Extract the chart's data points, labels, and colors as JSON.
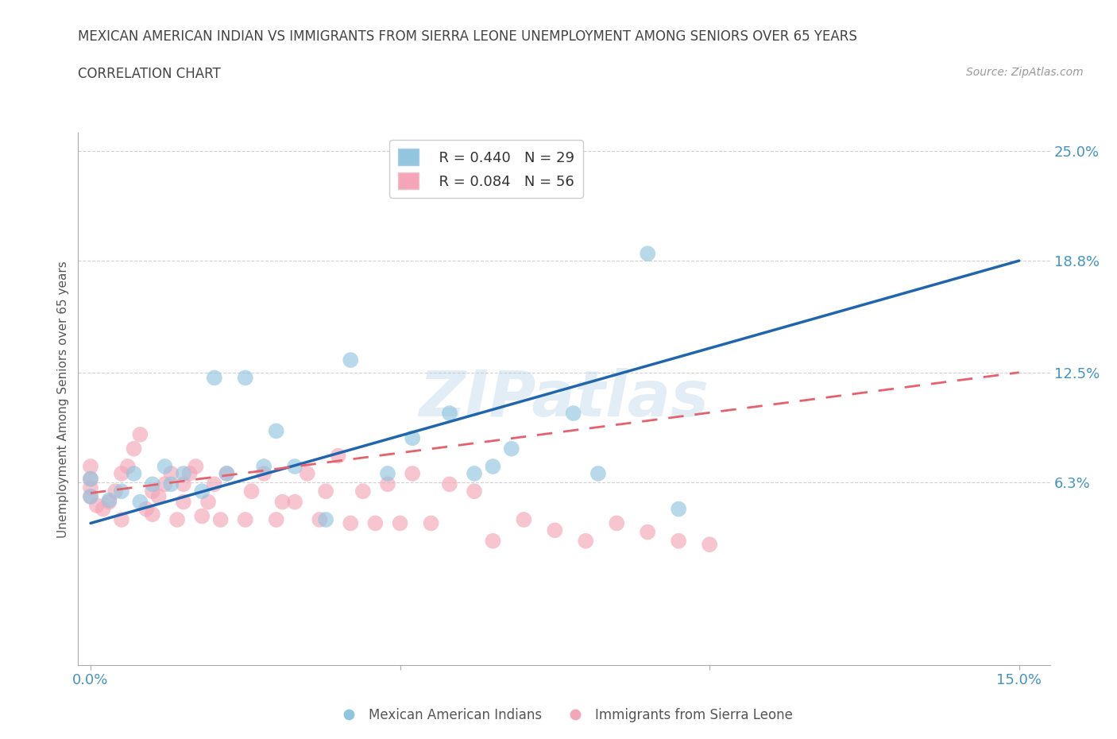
{
  "title_line1": "MEXICAN AMERICAN INDIAN VS IMMIGRANTS FROM SIERRA LEONE UNEMPLOYMENT AMONG SENIORS OVER 65 YEARS",
  "title_line2": "CORRELATION CHART",
  "source_text": "Source: ZipAtlas.com",
  "ylabel": "Unemployment Among Seniors over 65 years",
  "xlim": [
    -0.002,
    0.155
  ],
  "ylim": [
    -0.04,
    0.26
  ],
  "yticks": [
    0.063,
    0.125,
    0.188,
    0.25
  ],
  "ytick_labels": [
    "6.3%",
    "12.5%",
    "18.8%",
    "25.0%"
  ],
  "xticks": [
    0.0,
    0.05,
    0.1,
    0.15
  ],
  "xtick_labels": [
    "0.0%",
    "",
    "",
    "15.0%"
  ],
  "legend_r1": "R = 0.440",
  "legend_n1": "N = 29",
  "legend_r2": "R = 0.084",
  "legend_n2": "N = 56",
  "color_blue": "#92c5de",
  "color_pink": "#f4a6b8",
  "color_trend_blue": "#2166ac",
  "color_trend_pink": "#e8606e",
  "color_axis_blue": "#4393c3",
  "color_title": "#444444",
  "watermark": "ZIPatlas",
  "blue_scatter_x": [
    0.0,
    0.0,
    0.003,
    0.005,
    0.007,
    0.008,
    0.01,
    0.012,
    0.013,
    0.015,
    0.018,
    0.02,
    0.022,
    0.025,
    0.028,
    0.03,
    0.033,
    0.038,
    0.042,
    0.048,
    0.052,
    0.058,
    0.062,
    0.065,
    0.068,
    0.078,
    0.082,
    0.09,
    0.095
  ],
  "blue_scatter_y": [
    0.055,
    0.065,
    0.053,
    0.058,
    0.068,
    0.052,
    0.062,
    0.072,
    0.062,
    0.068,
    0.058,
    0.122,
    0.068,
    0.122,
    0.072,
    0.092,
    0.072,
    0.042,
    0.132,
    0.068,
    0.088,
    0.102,
    0.068,
    0.072,
    0.082,
    0.102,
    0.068,
    0.192,
    0.048
  ],
  "pink_scatter_x": [
    0.0,
    0.0,
    0.0,
    0.0,
    0.001,
    0.002,
    0.003,
    0.004,
    0.005,
    0.005,
    0.006,
    0.007,
    0.008,
    0.009,
    0.01,
    0.01,
    0.011,
    0.012,
    0.013,
    0.014,
    0.015,
    0.015,
    0.016,
    0.017,
    0.018,
    0.019,
    0.02,
    0.021,
    0.022,
    0.025,
    0.026,
    0.028,
    0.03,
    0.031,
    0.033,
    0.035,
    0.037,
    0.038,
    0.04,
    0.042,
    0.044,
    0.046,
    0.048,
    0.05,
    0.052,
    0.055,
    0.058,
    0.062,
    0.065,
    0.07,
    0.075,
    0.08,
    0.085,
    0.09,
    0.095,
    0.1
  ],
  "pink_scatter_y": [
    0.055,
    0.06,
    0.065,
    0.072,
    0.05,
    0.048,
    0.052,
    0.058,
    0.042,
    0.068,
    0.072,
    0.082,
    0.09,
    0.048,
    0.045,
    0.058,
    0.055,
    0.062,
    0.068,
    0.042,
    0.052,
    0.062,
    0.068,
    0.072,
    0.044,
    0.052,
    0.062,
    0.042,
    0.068,
    0.042,
    0.058,
    0.068,
    0.042,
    0.052,
    0.052,
    0.068,
    0.042,
    0.058,
    0.078,
    0.04,
    0.058,
    0.04,
    0.062,
    0.04,
    0.068,
    0.04,
    0.062,
    0.058,
    0.03,
    0.042,
    0.036,
    0.03,
    0.04,
    0.035,
    0.03,
    0.028
  ],
  "blue_trend_x": [
    0.0,
    0.15
  ],
  "blue_trend_y": [
    0.04,
    0.188
  ],
  "pink_trend_x": [
    0.0,
    0.15
  ],
  "pink_trend_y": [
    0.057,
    0.125
  ],
  "grid_color": "#d0d0d0",
  "background_color": "#ffffff"
}
